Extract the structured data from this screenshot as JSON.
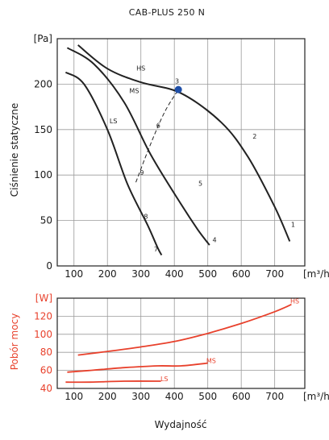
{
  "chart_data": [
    {
      "type": "line",
      "title": "CAB-PLUS 250 N",
      "ylabel": "Ciśnienie statyczne",
      "y_unit": "[Pa]",
      "x_unit": "[m³/h]",
      "xlim": [
        50,
        790
      ],
      "ylim": [
        0,
        250
      ],
      "x_ticks": [
        "100",
        "200",
        "300",
        "400",
        "500",
        "600",
        "700"
      ],
      "y_ticks": [
        "0",
        "50",
        "100",
        "150",
        "200"
      ],
      "grid": true,
      "series": [
        {
          "name": "HS",
          "color": "#222222",
          "points": [
            [
              112,
              243
            ],
            [
              200,
              217
            ],
            [
              300,
              202
            ],
            [
              420,
              190
            ],
            [
              540,
              158
            ],
            [
              620,
              120
            ],
            [
              700,
              65
            ],
            [
              745,
              27
            ]
          ]
        },
        {
          "name": "MS",
          "color": "#222222",
          "points": [
            [
              80,
              240
            ],
            [
              160,
              222
            ],
            [
              250,
              180
            ],
            [
              330,
              122
            ],
            [
              420,
              68
            ],
            [
              470,
              40
            ],
            [
              505,
              23
            ]
          ]
        },
        {
          "name": "LS",
          "color": "#222222",
          "points": [
            [
              75,
              213
            ],
            [
              130,
              200
            ],
            [
              200,
              150
            ],
            [
              260,
              90
            ],
            [
              320,
              45
            ],
            [
              350,
              20
            ],
            [
              362,
              12
            ]
          ]
        },
        {
          "name": "",
          "dashed": true,
          "color": "#444444",
          "points": [
            [
              285,
              92
            ],
            [
              330,
              135
            ],
            [
              372,
              170
            ],
            [
              412,
              194
            ]
          ]
        }
      ],
      "labels": [
        {
          "text": "HS",
          "x": 300,
          "y": 215
        },
        {
          "text": "MS",
          "x": 280,
          "y": 190
        },
        {
          "text": "LS",
          "x": 218,
          "y": 157
        },
        {
          "text": "3",
          "x": 408,
          "y": 201
        },
        {
          "text": "6",
          "x": 352,
          "y": 152
        },
        {
          "text": "9",
          "x": 303,
          "y": 100
        },
        {
          "text": "8",
          "x": 315,
          "y": 52
        },
        {
          "text": "7",
          "x": 345,
          "y": 16
        },
        {
          "text": "2",
          "x": 640,
          "y": 140
        },
        {
          "text": "5",
          "x": 478,
          "y": 88
        },
        {
          "text": "1",
          "x": 755,
          "y": 43
        },
        {
          "text": "4",
          "x": 520,
          "y": 26
        }
      ],
      "operating_point": {
        "x": 412,
        "y": 194,
        "color": "#1f4fa8"
      }
    },
    {
      "type": "line",
      "ylabel": "Pobór mocy",
      "y_unit": "[W]",
      "x_unit": "[m³/h]",
      "xlabel": "Wydajność",
      "xlim": [
        50,
        790
      ],
      "ylim": [
        40,
        140
      ],
      "x_ticks": [
        "100",
        "200",
        "300",
        "400",
        "500",
        "600",
        "700"
      ],
      "y_ticks": [
        "40",
        "60",
        "80",
        "100",
        "120"
      ],
      "grid": true,
      "series": [
        {
          "name": "HS",
          "color": "#e8412c",
          "points": [
            [
              112,
              77
            ],
            [
              200,
              81
            ],
            [
              300,
              86
            ],
            [
              400,
              92
            ],
            [
              500,
              101
            ],
            [
              600,
              112
            ],
            [
              700,
              125
            ],
            [
              750,
              133
            ]
          ]
        },
        {
          "name": "MS",
          "color": "#e8412c",
          "points": [
            [
              80,
              58
            ],
            [
              150,
              60
            ],
            [
              250,
              63
            ],
            [
              350,
              65
            ],
            [
              420,
              65
            ],
            [
              500,
              68
            ]
          ]
        },
        {
          "name": "LS",
          "color": "#e8412c",
          "points": [
            [
              75,
              47
            ],
            [
              150,
              47
            ],
            [
              250,
              48
            ],
            [
              360,
              48
            ]
          ]
        }
      ],
      "labels": [
        {
          "text": "HS",
          "x": 760,
          "y": 134
        },
        {
          "text": "MS",
          "x": 510,
          "y": 68
        },
        {
          "text": "LS",
          "x": 370,
          "y": 48
        }
      ]
    }
  ]
}
